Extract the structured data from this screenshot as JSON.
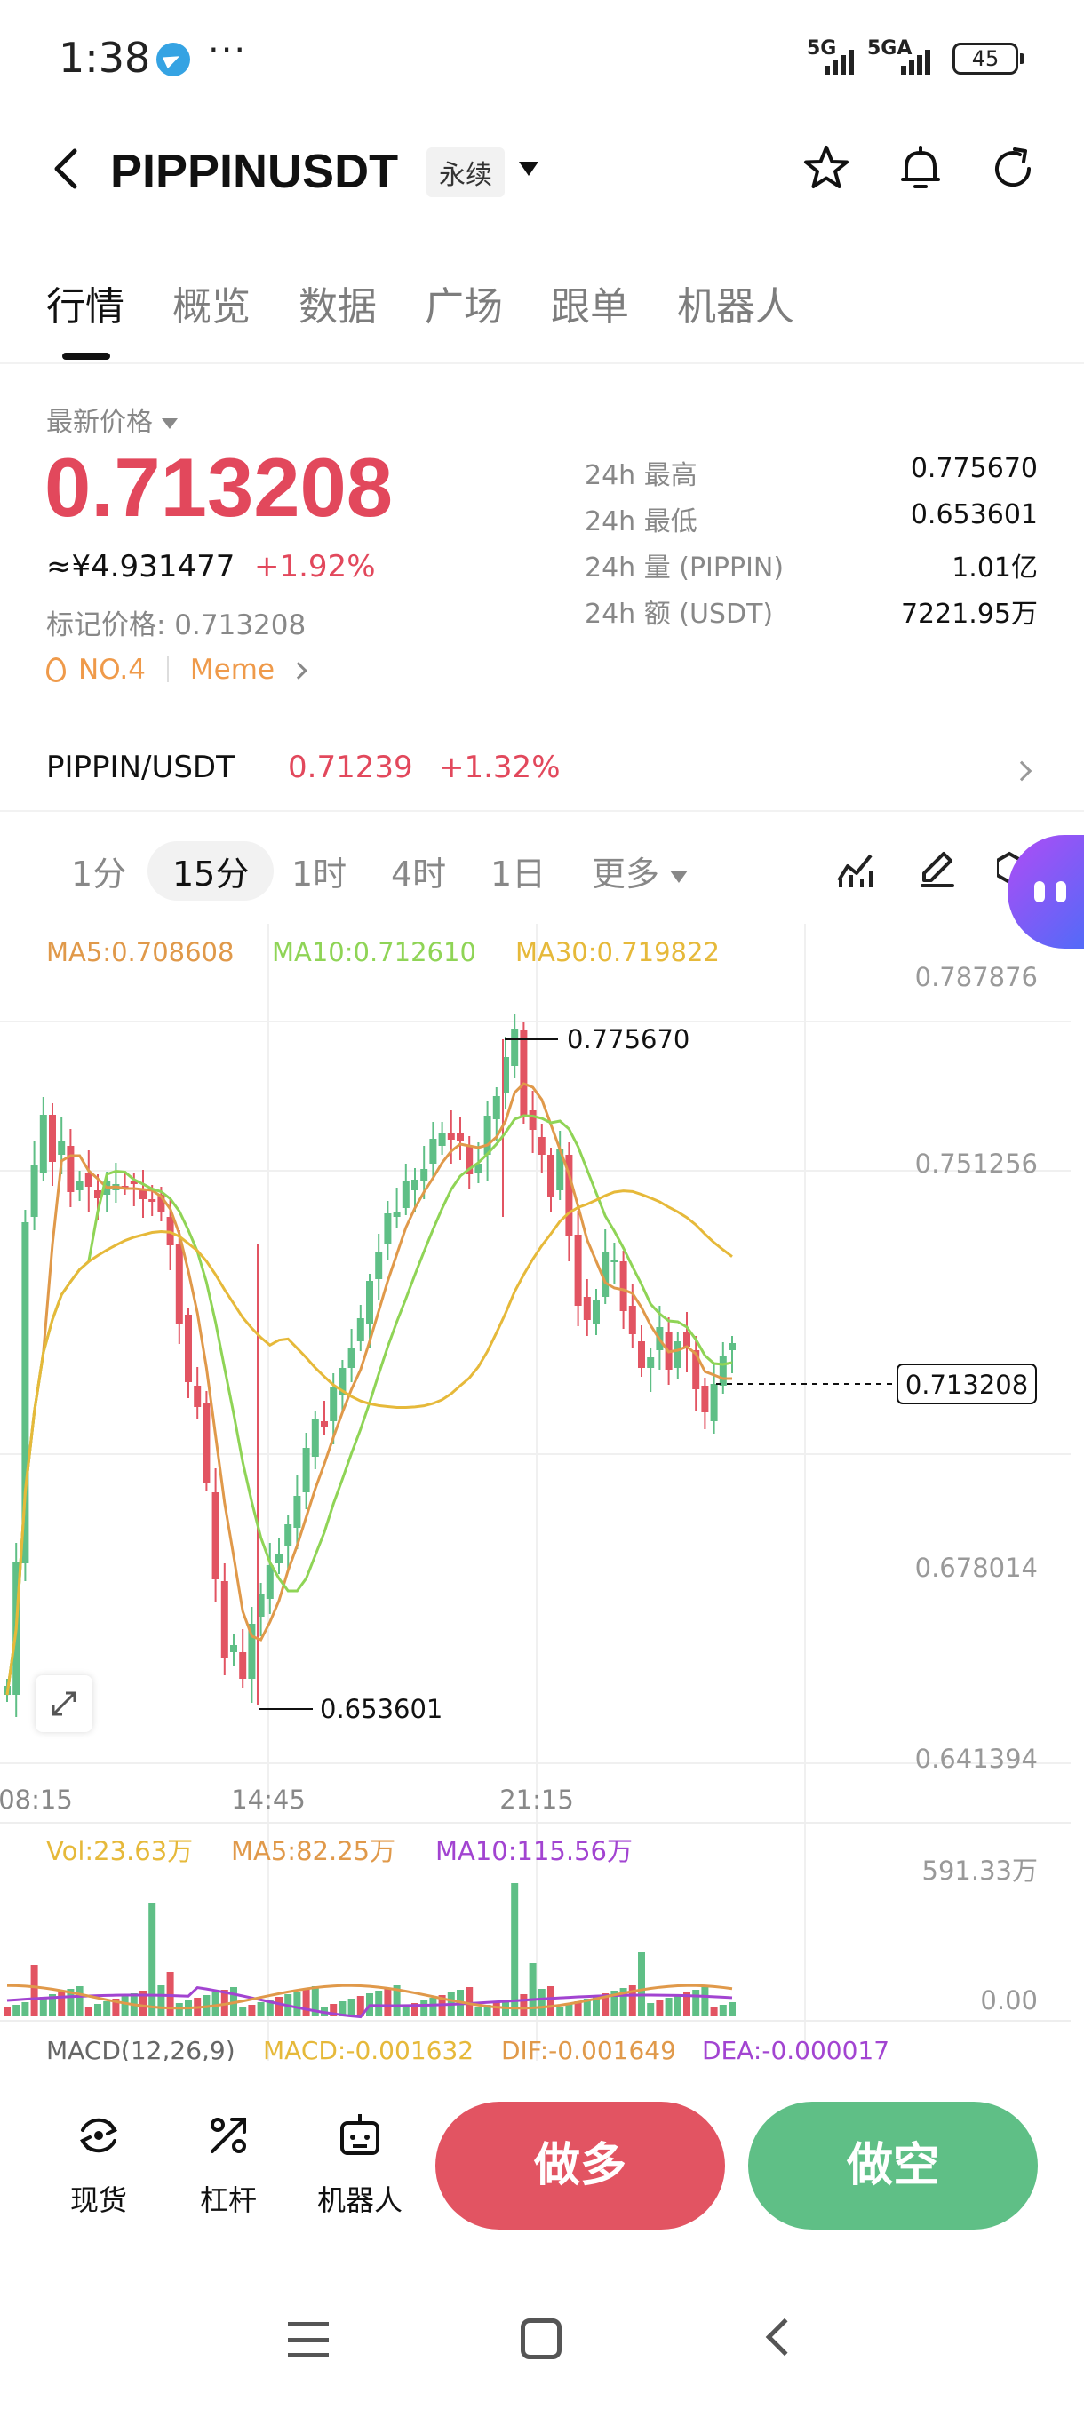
{
  "status_bar": {
    "time": "1:38",
    "dots": "···",
    "net1": "5G",
    "net2": "5GA",
    "battery": "45"
  },
  "header": {
    "back_icon": "chevron-left-icon",
    "title": "PIPPINUSDT",
    "contract_type": "永续",
    "icons": [
      "star-icon",
      "bell-icon",
      "refresh-icon"
    ]
  },
  "tabs": [
    {
      "label": "行情",
      "active": true
    },
    {
      "label": "概览",
      "active": false
    },
    {
      "label": "数据",
      "active": false
    },
    {
      "label": "广场",
      "active": false
    },
    {
      "label": "跟单",
      "active": false
    },
    {
      "label": "机器人",
      "active": false
    }
  ],
  "price": {
    "latest_label": "最新价格",
    "last_price": "0.713208",
    "cny": "≈¥4.931477",
    "change": "+1.92%",
    "mark_price": "标记价格: 0.713208",
    "rank": "NO.4",
    "category": "Meme"
  },
  "stats": [
    {
      "label": "24h  最高",
      "value": "0.775670"
    },
    {
      "label": "24h  最低",
      "value": "0.653601"
    },
    {
      "label": "24h  量 (PIPPIN)",
      "value": "1.01亿"
    },
    {
      "label": "24h  额 (USDT)",
      "value": "7221.95万"
    }
  ],
  "spot": {
    "pair": "PIPPIN/USDT",
    "price": "0.71239",
    "change": "+1.32%"
  },
  "intervals": {
    "items": [
      "1分",
      "15分",
      "1时",
      "4时",
      "1日"
    ],
    "selected": "15分",
    "more": "更多"
  },
  "chart_data": {
    "type": "candlestick",
    "interval": "15分",
    "indicators": {
      "ma5": "MA5:0.708608",
      "ma10": "MA10:0.712610",
      "ma30": "MA30:0.719822"
    },
    "y_ticks": [
      "0.787876",
      "0.751256",
      "0.678014",
      "0.641394"
    ],
    "ylim": [
      0.641394,
      0.787876
    ],
    "x_ticks": [
      "08:15",
      "14:45",
      "21:15"
    ],
    "high_label": "0.775670",
    "low_label": "0.653601",
    "current_label": "0.713208",
    "colors": {
      "up": "#5fbf86",
      "down": "#e25462",
      "ma5": "#e0994a",
      "ma10": "#8fd456",
      "ma30": "#e6b93a",
      "vol_ma10": "#a244d1"
    },
    "volume": {
      "vol": "Vol:23.63万",
      "ma5": "MA5:82.25万",
      "ma10": "MA10:115.56万",
      "max_tick": "591.33万",
      "min_tick": "0.00"
    },
    "macd_label": "MACD(12,26,9)",
    "macd": "MACD:-0.001632",
    "dif": "DIF:-0.001649",
    "dea": "DEA:-0.000017"
  },
  "actions": {
    "items": [
      {
        "label": "现货",
        "icon": "spot-icon"
      },
      {
        "label": "杠杆",
        "icon": "leverage-icon"
      },
      {
        "label": "机器人",
        "icon": "robot-icon"
      }
    ],
    "long": "做多",
    "short": "做空"
  }
}
